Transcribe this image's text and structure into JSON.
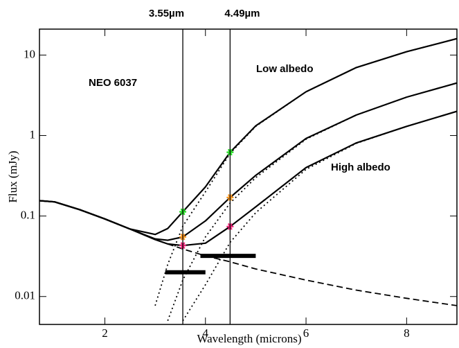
{
  "chart_data": {
    "type": "line",
    "title_labels": [
      "3.55µm",
      "4.49µm"
    ],
    "annotations": [
      "NEO 6037",
      "Low albedo",
      "High albedo"
    ],
    "xlabel": "Wavelength (microns)",
    "ylabel": "Flux (mJy)",
    "xlim": [
      0.7,
      9
    ],
    "ylim": [
      0.0045,
      21
    ],
    "yscale": "log",
    "xticks": [
      2,
      4,
      6,
      8
    ],
    "yticks": [
      0.01,
      0.1,
      1,
      10
    ],
    "vlines": [
      3.55,
      4.49
    ],
    "x": [
      0.7,
      1,
      1.5,
      2,
      2.5,
      3,
      3.25,
      3.55,
      4,
      4.49,
      5,
      6,
      7,
      8,
      9
    ],
    "series": [
      {
        "color": "#000000",
        "dash": "dashed",
        "values": [
          0.155,
          0.15,
          0.12,
          0.092,
          0.069,
          0.051,
          0.045,
          0.039,
          0.032,
          0.027,
          0.022,
          0.016,
          0.012,
          0.0095,
          0.0077
        ]
      },
      {
        "color": "#000000",
        "dash": "dotted",
        "values": [
          null,
          null,
          null,
          null,
          null,
          0.0077,
          0.025,
          0.075,
          0.2,
          0.6,
          1.3,
          3.5,
          7,
          11,
          16
        ]
      },
      {
        "color": "#000000",
        "dash": "dotted",
        "values": [
          null,
          null,
          null,
          null,
          null,
          null,
          0.005,
          0.016,
          0.055,
          0.145,
          0.3,
          0.9,
          1.8,
          3,
          4.5
        ]
      },
      {
        "color": "#000000",
        "dash": "dotted",
        "values": [
          null,
          null,
          null,
          null,
          null,
          null,
          null,
          0.005,
          0.014,
          0.047,
          0.11,
          0.38,
          0.8,
          1.3,
          2
        ]
      },
      {
        "color": "#000000",
        "dash": "solid",
        "values": [
          0.155,
          0.15,
          0.12,
          0.092,
          0.069,
          0.059,
          0.07,
          0.113,
          0.23,
          0.62,
          1.32,
          3.5,
          7,
          11,
          16
        ]
      },
      {
        "color": "#000000",
        "dash": "solid",
        "values": [
          0.155,
          0.15,
          0.12,
          0.092,
          0.069,
          0.052,
          0.05,
          0.055,
          0.087,
          0.17,
          0.32,
          0.92,
          1.8,
          3,
          4.5
        ]
      },
      {
        "color": "#000000",
        "dash": "solid",
        "values": [
          0.155,
          0.15,
          0.12,
          0.092,
          0.069,
          0.051,
          0.045,
          0.043,
          0.046,
          0.074,
          0.13,
          0.4,
          0.81,
          1.3,
          2
        ]
      }
    ],
    "markers": [
      {
        "color": "#22dd22",
        "x": [
          3.55,
          4.49
        ],
        "values": [
          0.113,
          0.62
        ]
      },
      {
        "color": "#ff9922",
        "x": [
          3.55,
          4.49
        ],
        "values": [
          0.055,
          0.17
        ]
      },
      {
        "color": "#ee2277",
        "x": [
          3.55,
          4.49
        ],
        "values": [
          0.043,
          0.074
        ]
      }
    ],
    "bands": [
      {
        "x": [
          3.2,
          4.0
        ],
        "value": 0.02
      },
      {
        "x": [
          3.9,
          5.0
        ],
        "value": 0.032
      }
    ]
  }
}
